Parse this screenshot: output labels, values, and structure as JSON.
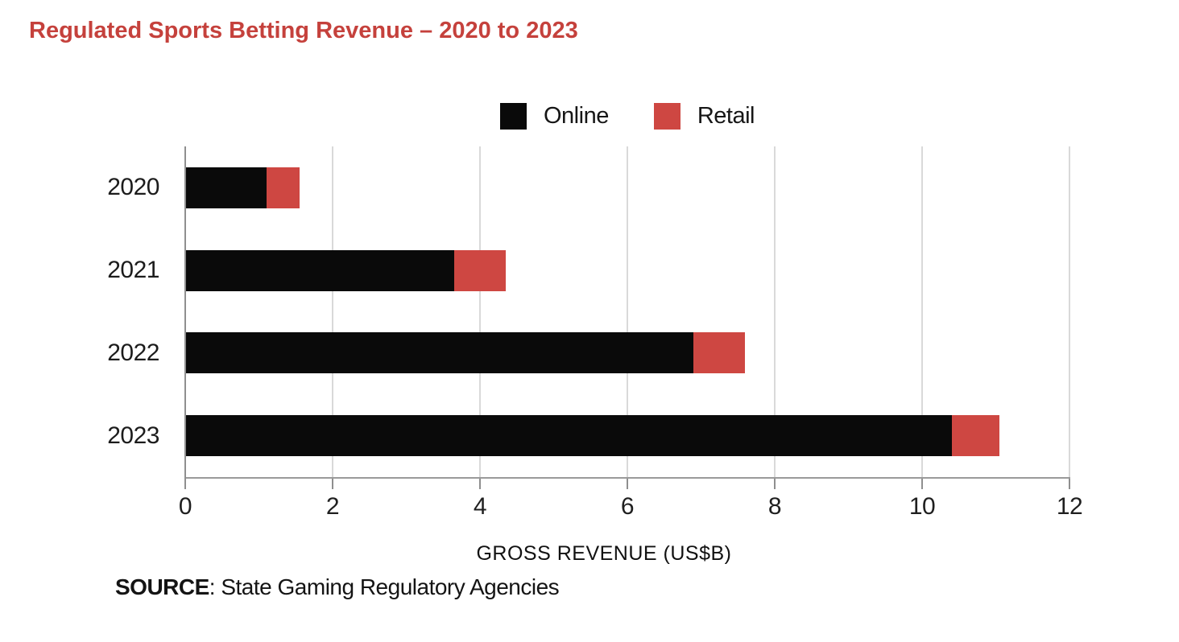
{
  "page": {
    "title": "Regulated Sports Betting Revenue – 2020 to 2023"
  },
  "chart_data": {
    "type": "bar",
    "orientation": "horizontal",
    "stacked": true,
    "title": "Regulated Sports Betting Revenue – 2020 to 2023",
    "categories": [
      "2020",
      "2021",
      "2022",
      "2023"
    ],
    "series": [
      {
        "name": "Online",
        "color": "#0a0a0a",
        "values": [
          1.1,
          3.65,
          6.9,
          10.4
        ]
      },
      {
        "name": "Retail",
        "color": "#ce4742",
        "values": [
          0.45,
          0.7,
          0.7,
          0.65
        ]
      }
    ],
    "totals": [
      1.55,
      4.35,
      7.6,
      11.05
    ],
    "xlabel": "GROSS REVENUE (US$B)",
    "ylabel": "",
    "xlim": [
      0,
      12
    ],
    "xticks": [
      0,
      2,
      4,
      6,
      8,
      10,
      12
    ],
    "legend_position": "top-center",
    "grid": "vertical",
    "grid_color": "#d9d9d9",
    "axis_color": "#8f8f8f"
  },
  "source": {
    "label": "SOURCE",
    "text": ": State Gaming Regulatory Agencies"
  },
  "colors": {
    "title_red": "#c5413c",
    "online_black": "#0a0a0a",
    "retail_red": "#ce4742"
  }
}
